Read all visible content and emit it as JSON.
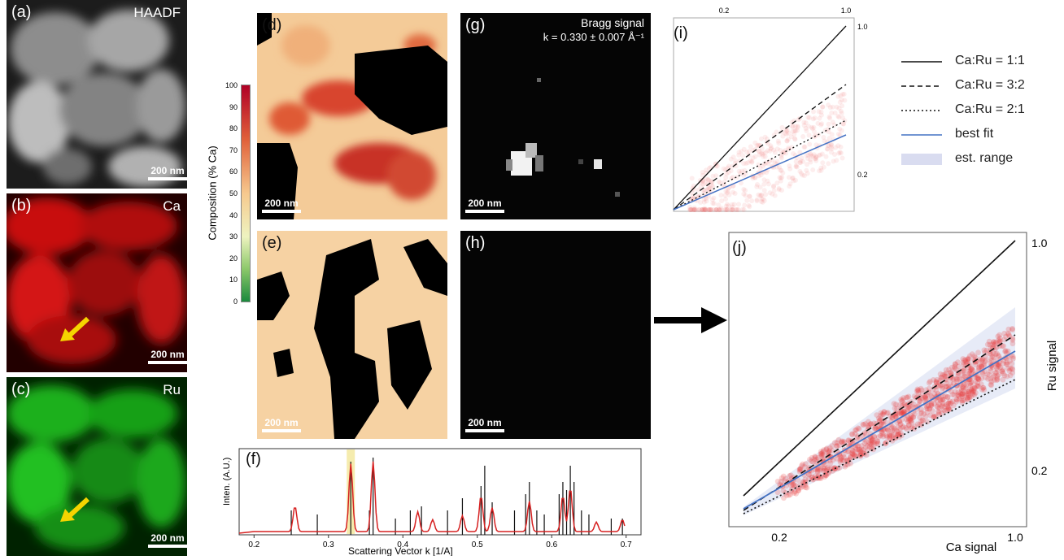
{
  "panels": {
    "a": {
      "label": "(a)",
      "tag": "HAADF",
      "scale": "200 nm"
    },
    "b": {
      "label": "(b)",
      "tag": "Ca",
      "scale": "200 nm"
    },
    "c": {
      "label": "(c)",
      "tag": "Ru",
      "scale": "200 nm"
    },
    "d": {
      "label": "(d)",
      "scale": "200 nm"
    },
    "e": {
      "label": "(e)",
      "scale": "200 nm"
    },
    "f": {
      "label": "(f)"
    },
    "g": {
      "label": "(g)",
      "tag_line1": "Bragg signal",
      "tag_line2": "k = 0.330 ± 0.007 Å⁻¹",
      "scale": "200 nm"
    },
    "h": {
      "label": "(h)",
      "scale": "200 nm"
    },
    "i": {
      "label": "(i)"
    },
    "j": {
      "label": "(j)"
    }
  },
  "colorbar": {
    "label": "Composition (% Ca)",
    "ticks": [
      "100",
      "90",
      "80",
      "70",
      "60",
      "50",
      "40",
      "30",
      "20",
      "10",
      "0"
    ],
    "colors": [
      "#b00026",
      "#e0603a",
      "#f6c98e",
      "#eef3c0",
      "#1a8a3c"
    ]
  },
  "legend": {
    "items": [
      {
        "label": "Ca:Ru = 1:1",
        "style": "solid",
        "color": "#111111"
      },
      {
        "label": "Ca:Ru = 3:2",
        "style": "dashed",
        "color": "#111111"
      },
      {
        "label": "Ca:Ru = 2:1",
        "style": "dotted",
        "color": "#111111"
      },
      {
        "label": "best fit",
        "style": "solid",
        "color": "#4472c4"
      },
      {
        "label": "est. range",
        "style": "band",
        "color": "#d9dcf0"
      }
    ]
  },
  "chart_data": [
    {
      "type": "line",
      "id": "f",
      "xlabel": "Scattering Vector k [1/A]",
      "ylabel": "Inten. (A.U.)",
      "xlim": [
        0.18,
        0.72
      ],
      "xticks": [
        "0.2",
        "0.3",
        "0.4",
        "0.5",
        "0.6",
        "0.7"
      ],
      "highlight_x": 0.33,
      "series": [
        {
          "peaks_x": [
            0.255,
            0.33,
            0.36,
            0.42,
            0.44,
            0.48,
            0.505,
            0.52,
            0.57,
            0.615,
            0.625,
            0.66,
            0.695
          ],
          "peaks_y": [
            0.32,
            0.85,
            0.88,
            0.25,
            0.15,
            0.2,
            0.45,
            0.3,
            0.38,
            0.45,
            0.55,
            0.12,
            0.15
          ],
          "color": "#d62020"
        },
        {
          "peaks_x": [
            0.25,
            0.285,
            0.33,
            0.355,
            0.36,
            0.39,
            0.41,
            0.425,
            0.46,
            0.48,
            0.505,
            0.51,
            0.52,
            0.55,
            0.565,
            0.57,
            0.58,
            0.59,
            0.61,
            0.615,
            0.62,
            0.625,
            0.63,
            0.64,
            0.65,
            0.68,
            0.695
          ],
          "peaks_y": [
            0.3,
            0.25,
            0.9,
            0.3,
            0.95,
            0.2,
            0.3,
            0.35,
            0.3,
            0.45,
            0.6,
            0.85,
            0.4,
            0.3,
            0.5,
            0.65,
            0.3,
            0.25,
            0.5,
            0.65,
            0.55,
            0.85,
            0.65,
            0.3,
            0.25,
            0.2,
            0.2
          ],
          "color": "#111111"
        }
      ]
    },
    {
      "type": "scatter",
      "id": "i",
      "xticks": [
        "0.2",
        "1.0"
      ],
      "yticks": [
        "1.0",
        "0.2"
      ],
      "lines": [
        {
          "name": "Ca:Ru = 1:1",
          "slope": 1.0
        },
        {
          "name": "Ca:Ru = 3:2",
          "slope": 0.667
        },
        {
          "name": "Ca:Ru = 2:1",
          "slope": 0.5
        }
      ]
    },
    {
      "type": "scatter",
      "id": "j",
      "xlabel": "Ca signal",
      "ylabel": "Ru signal",
      "xticks": [
        "0.2",
        "1.0"
      ],
      "yticks": [
        "1.0",
        "0.2"
      ],
      "xlim": [
        0.15,
        1.0
      ],
      "ylim": [
        0.15,
        1.0
      ]
    }
  ]
}
